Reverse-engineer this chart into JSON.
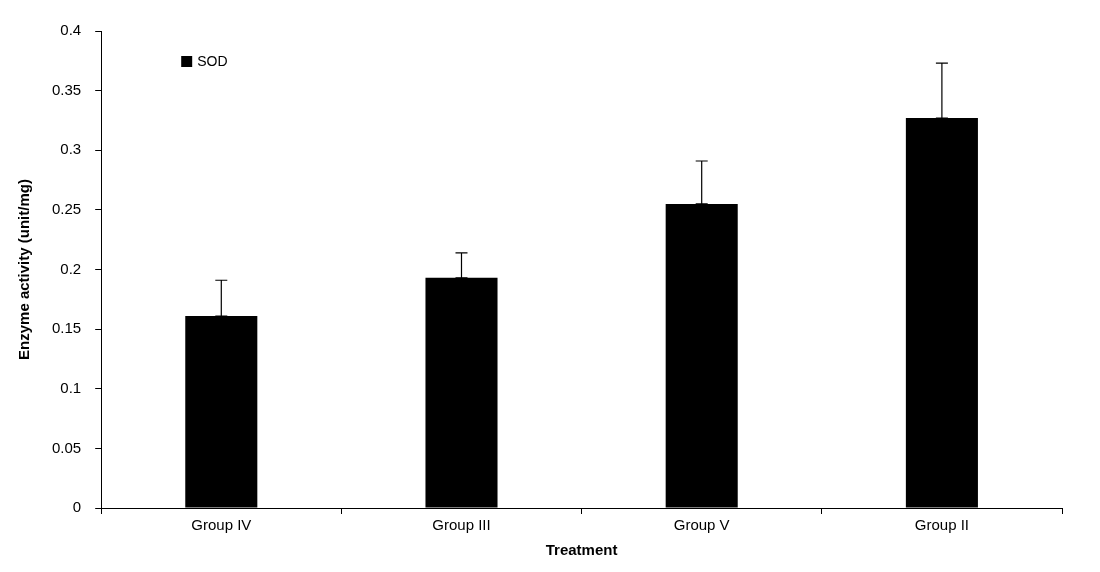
{
  "chart_data": {
    "type": "bar",
    "xlabel": "Treatment",
    "ylabel": "Enzyme activity (unit/mg)",
    "categories": [
      "Group IV",
      "Group III",
      "Group V",
      "Group II"
    ],
    "series": [
      {
        "name": "SOD",
        "color": "#000000",
        "values": [
          0.161,
          0.193,
          0.255,
          0.327
        ],
        "errors": [
          [
            0.161,
            0.191
          ],
          [
            0.193,
            0.214
          ],
          [
            0.255,
            0.291
          ],
          [
            0.327,
            0.373
          ]
        ]
      }
    ],
    "ylim": [
      0,
      0.4
    ],
    "yticks": [
      0,
      0.05,
      0.1,
      0.15,
      0.2,
      0.25,
      0.3,
      0.35,
      0.4
    ],
    "grid": false,
    "legend": "top left"
  }
}
